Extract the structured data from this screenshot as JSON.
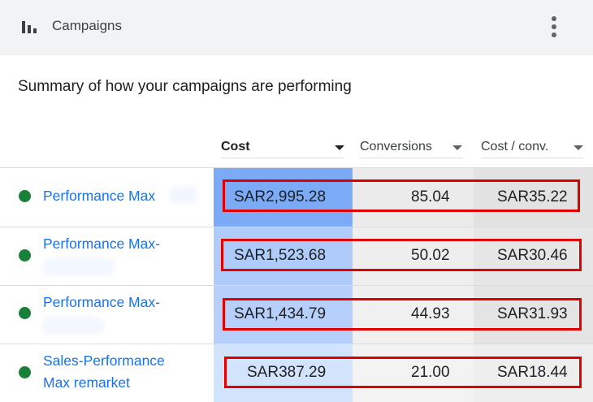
{
  "header": {
    "icon": "bar-chart-icon",
    "title": "Campaigns",
    "menu_icon": "more-vert-icon"
  },
  "summary_title": "Summary of how your campaigns are performing",
  "columns": {
    "cost": "Cost",
    "conversions": "Conversions",
    "cost_per_conv": "Cost / conv."
  },
  "rows": [
    {
      "name_line1": "Performance Max",
      "name_line2": "",
      "cost": "SAR2,995.28",
      "conversions": "85.04",
      "cost_per_conv": "SAR35.22",
      "status_color": "#188038"
    },
    {
      "name_line1": "Performance Max-",
      "name_line2": "",
      "cost": "SAR1,523.68",
      "conversions": "50.02",
      "cost_per_conv": "SAR30.46",
      "status_color": "#188038"
    },
    {
      "name_line1": "Performance Max-",
      "name_line2": "",
      "cost": "SAR1,434.79",
      "conversions": "44.93",
      "cost_per_conv": "SAR31.93",
      "status_color": "#188038"
    },
    {
      "name_line1": "Sales-Performance",
      "name_line2": "Max remarket",
      "cost": "SAR387.29",
      "conversions": "21.00",
      "cost_per_conv": "SAR18.44",
      "status_color": "#188038"
    }
  ],
  "colors": {
    "header_bg": "#f1f3f4",
    "link": "#1a73e8",
    "status_active": "#188038",
    "highlight_border": "#e00000",
    "cost_heat": [
      "#7baaf7",
      "#aecbfa",
      "#b7d0fb",
      "#d2e3fc"
    ]
  }
}
